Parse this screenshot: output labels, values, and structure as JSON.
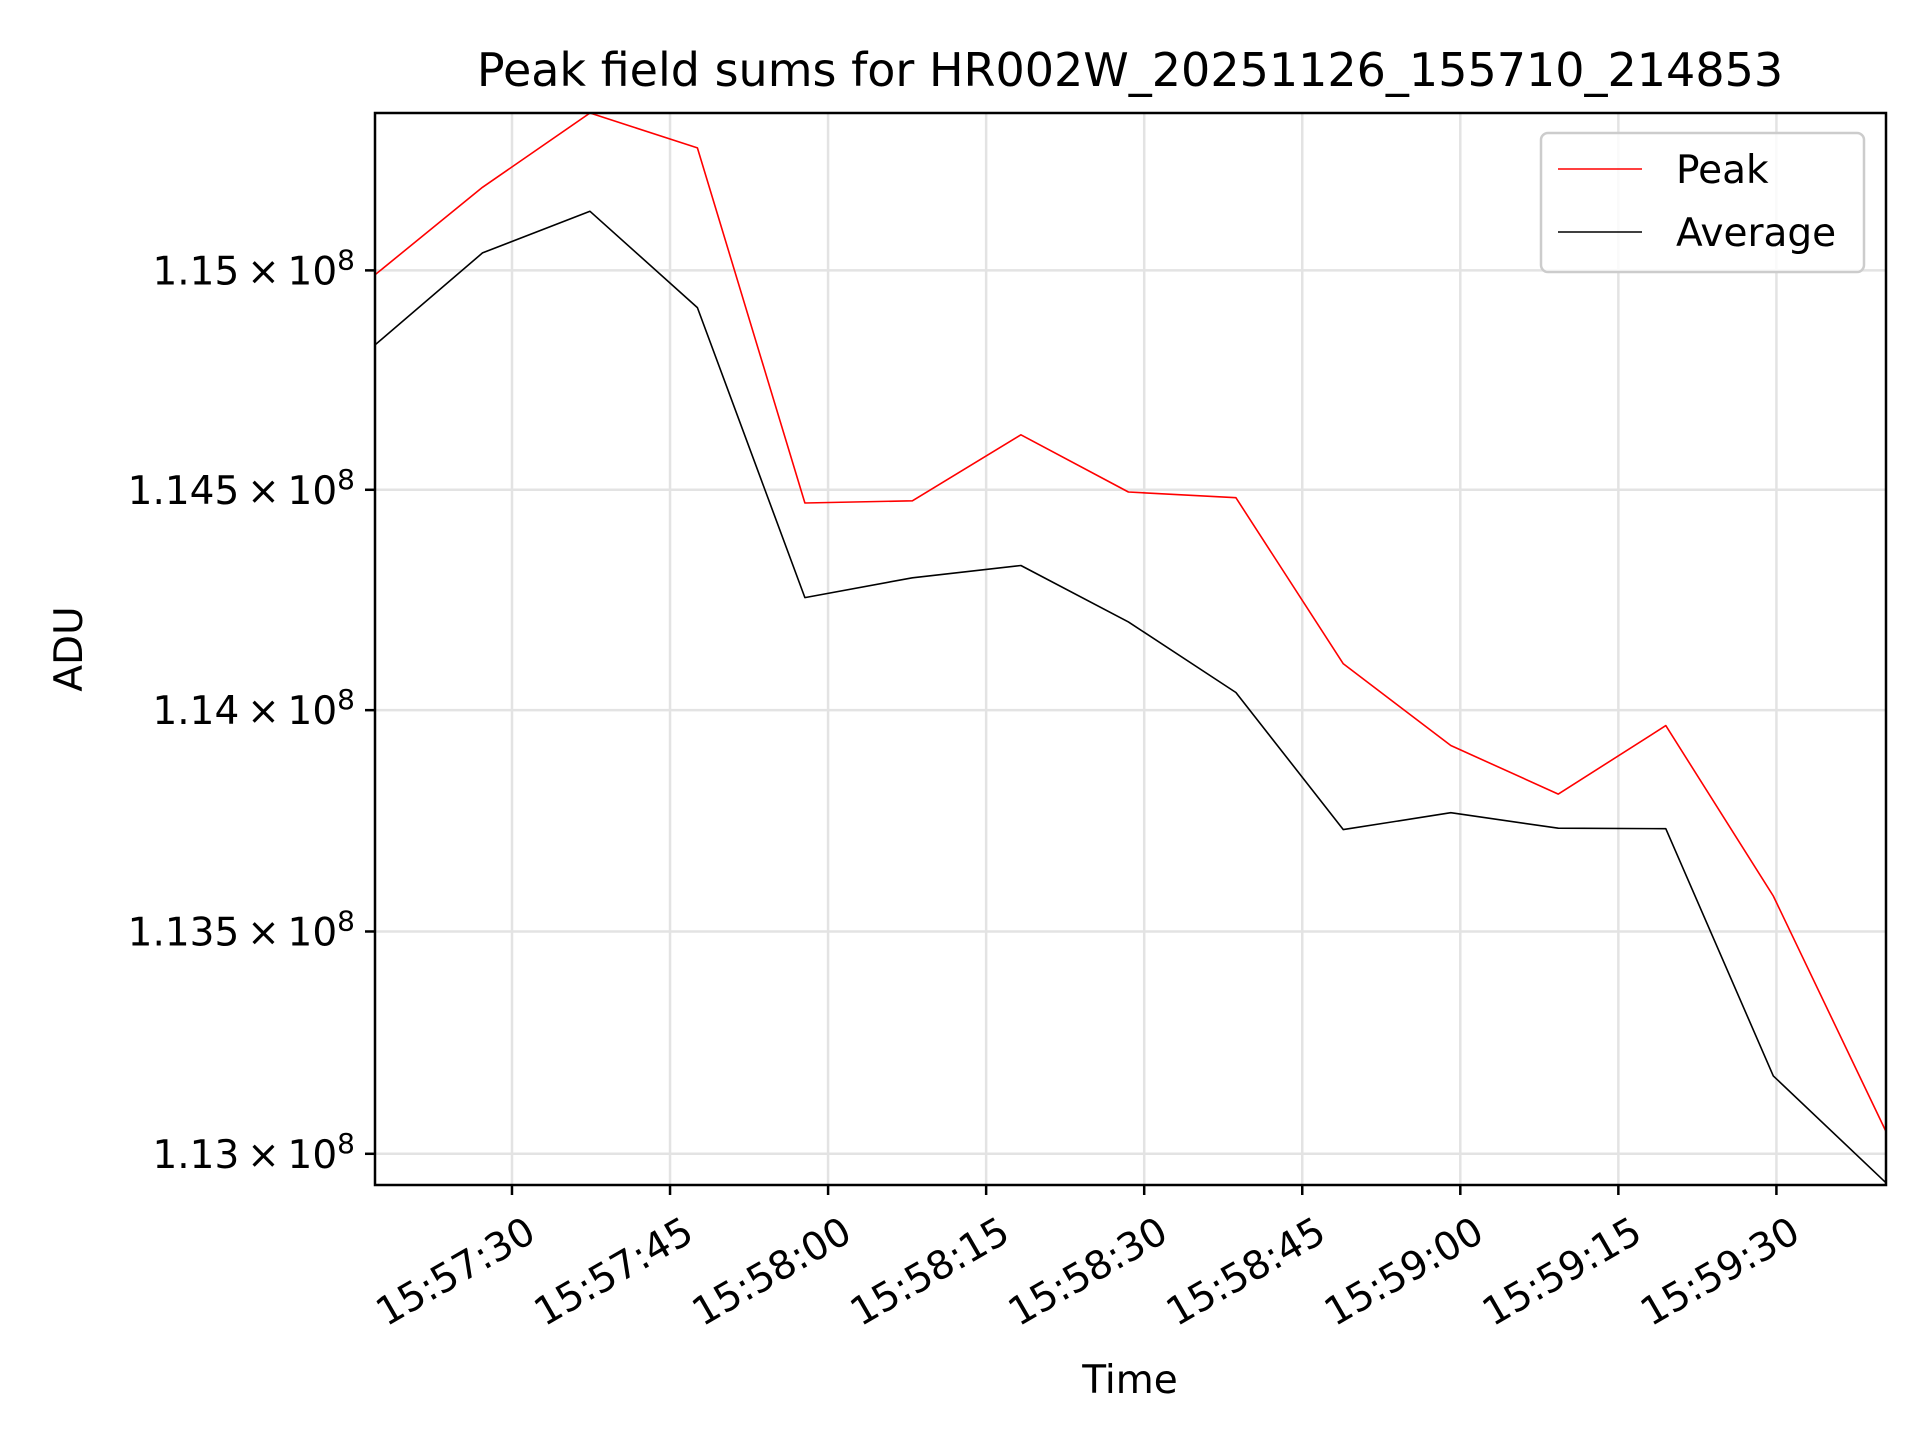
{
  "chart_data": {
    "type": "line",
    "title": "Peak field sums for HR002W_20251126_155710_214853",
    "xlabel": "Time",
    "ylabel": "ADU",
    "x_ticks": [
      "15:57:30",
      "15:57:45",
      "15:58:00",
      "15:58:15",
      "15:58:30",
      "15:58:45",
      "15:59:00",
      "15:59:15",
      "15:59:30"
    ],
    "x_tick_rotation_deg": 30,
    "y_ticks": [
      {
        "value": 113000000,
        "mantissa": "1.13"
      },
      {
        "value": 113500000,
        "mantissa": "1.135"
      },
      {
        "value": 114000000,
        "mantissa": "1.14"
      },
      {
        "value": 114500000,
        "mantissa": "1.145"
      },
      {
        "value": 115000000,
        "mantissa": "1.15"
      }
    ],
    "y_tick_format": "× 10^8",
    "xlim": [
      "15:57:17.0",
      "15:59:40.4"
    ],
    "ylim": [
      112930000,
      115360000
    ],
    "yscale": "log",
    "grid": true,
    "legend_position": "top-right",
    "x": [
      "15:57:17.0",
      "15:57:27.2",
      "15:57:37.4",
      "15:57:47.6",
      "15:57:57.8",
      "15:58:08.0",
      "15:58:18.3",
      "15:58:28.5",
      "15:58:38.7",
      "15:58:48.9",
      "15:58:59.1",
      "15:59:09.3",
      "15:59:19.5",
      "15:59:29.7",
      "15:59:40.4"
    ],
    "series": [
      {
        "name": "Peak",
        "color": "#ff0000",
        "values": [
          114990000,
          115190000,
          115360000,
          115280000,
          114470000,
          114475000,
          114625000,
          114495000,
          114482000,
          114105000,
          113920000,
          113810000,
          113965000,
          113580000,
          113050000
        ]
      },
      {
        "name": "Average",
        "color": "#000000",
        "values": [
          114830000,
          115040000,
          115135000,
          114915000,
          114255000,
          114300000,
          114328000,
          114200000,
          114040000,
          113730000,
          113768000,
          113733000,
          113732000,
          113175000,
          112935000
        ]
      }
    ]
  }
}
